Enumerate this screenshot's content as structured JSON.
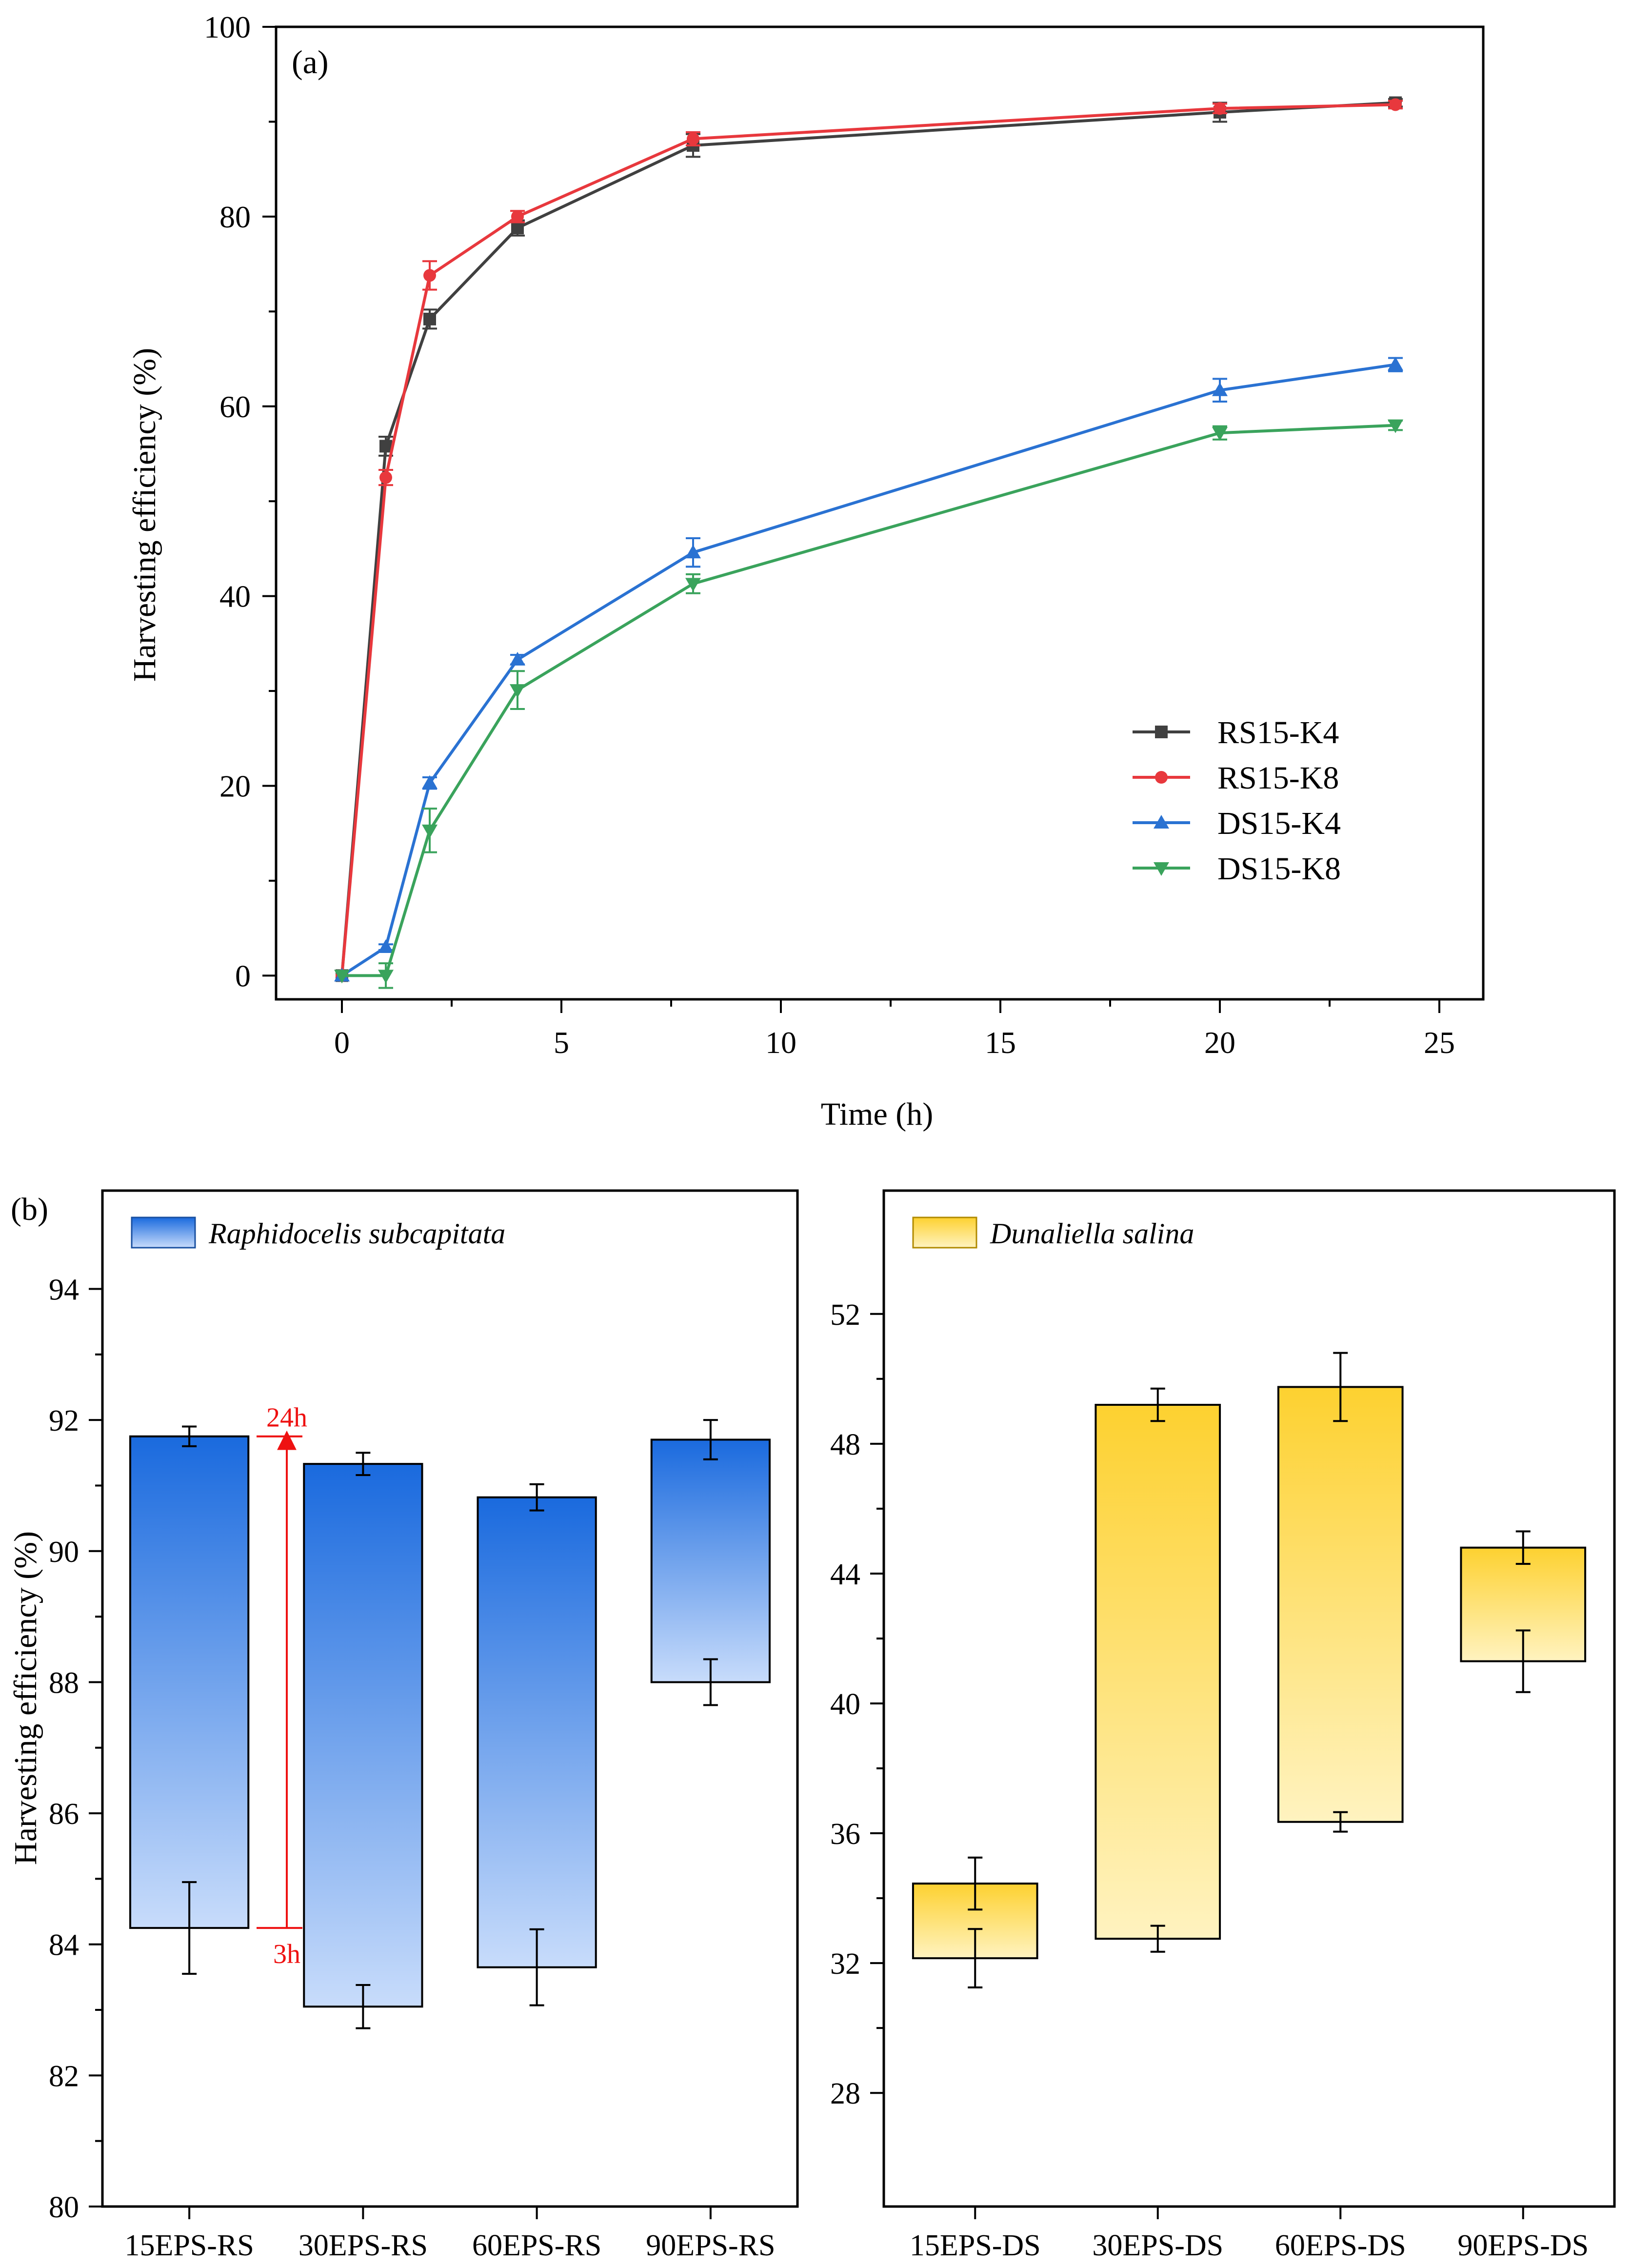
{
  "chart_data": [
    {
      "panel": "(a)",
      "type": "line",
      "xlabel": "Time (h)",
      "ylabel": "Harvesting efficiency (%)",
      "xlim": [
        -1.5,
        26
      ],
      "ylim": [
        -2.5,
        100
      ],
      "xticks": [
        0,
        5,
        10,
        15,
        20,
        25
      ],
      "yticks": [
        0,
        20,
        40,
        60,
        80,
        100
      ],
      "legend_position": "bottom-right",
      "x": [
        0,
        1,
        2,
        4,
        8,
        20,
        24
      ],
      "series": [
        {
          "name": "RS15-K4",
          "color": "#404040",
          "marker": "square",
          "values": [
            0,
            55.8,
            69.2,
            78.8,
            87.5,
            91.0,
            92.0
          ],
          "errors": [
            0,
            1.0,
            1.0,
            0.8,
            1.2,
            1.0,
            0.4
          ]
        },
        {
          "name": "RS15-K8",
          "color": "#e8383d",
          "marker": "circle",
          "values": [
            0,
            52.5,
            73.8,
            80.0,
            88.2,
            91.4,
            91.8
          ],
          "errors": [
            0,
            0.8,
            1.5,
            0.6,
            0.7,
            0.5,
            0.4
          ]
        },
        {
          "name": "DS15-K4",
          "color": "#2a72d2",
          "marker": "triangle-up",
          "values": [
            0,
            3.0,
            20.3,
            33.3,
            44.6,
            61.7,
            64.4
          ],
          "errors": [
            0,
            0.3,
            0.6,
            0.5,
            1.5,
            1.2,
            0.7
          ]
        },
        {
          "name": "DS15-K8",
          "color": "#3aa35c",
          "marker": "triangle-down",
          "values": [
            0,
            0,
            15.3,
            30.1,
            41.3,
            57.2,
            58.0
          ],
          "errors": [
            0,
            1.3,
            2.3,
            2.0,
            1.0,
            0.7,
            0.5
          ]
        }
      ],
      "annotations": []
    },
    {
      "panel": "(b)",
      "type": "bar",
      "ylabel": "Harvesting efficiency (%)",
      "ylim": [
        80,
        95.5
      ],
      "yticks": [
        80,
        82,
        84,
        86,
        88,
        90,
        92,
        94
      ],
      "legend": "Raphidocelis subcapitata",
      "legend_position": "top-left",
      "categories": [
        "15EPS-RS",
        "30EPS-RS",
        "60EPS-RS",
        "90EPS-RS"
      ],
      "bar_start_3h": [
        84.25,
        83.05,
        83.65,
        88.0
      ],
      "bar_end_24h": [
        91.75,
        91.33,
        90.82,
        91.7
      ],
      "start_errors": [
        0.7,
        0.33,
        0.58,
        0.35
      ],
      "end_errors": [
        0.15,
        0.17,
        0.2,
        0.3
      ],
      "gradient": [
        "#1a6ade",
        "#c8dcfb"
      ],
      "annotations": [
        {
          "label": "24h",
          "value": 91.75,
          "color": "#ee1111"
        },
        {
          "label": "3h",
          "value": 84.25,
          "color": "#ee1111"
        }
      ]
    },
    {
      "panel": "",
      "type": "bar",
      "ylim": [
        24.5,
        55.8
      ],
      "yticks": [
        28,
        32,
        36,
        40,
        44,
        48,
        52
      ],
      "legend": "Dunaliella salina",
      "legend_position": "top-left",
      "categories": [
        "15EPS-DS",
        "30EPS-DS",
        "60EPS-DS",
        "90EPS-DS"
      ],
      "bar_start_3h": [
        32.15,
        32.75,
        36.35,
        41.3
      ],
      "bar_end_24h": [
        34.45,
        49.2,
        49.75,
        44.8
      ],
      "start_errors": [
        0.9,
        0.4,
        0.3,
        0.95
      ],
      "end_errors": [
        0.8,
        0.5,
        1.05,
        0.5
      ],
      "gradient": [
        "#fdd130",
        "#fff3c0"
      ],
      "annotations": []
    }
  ]
}
